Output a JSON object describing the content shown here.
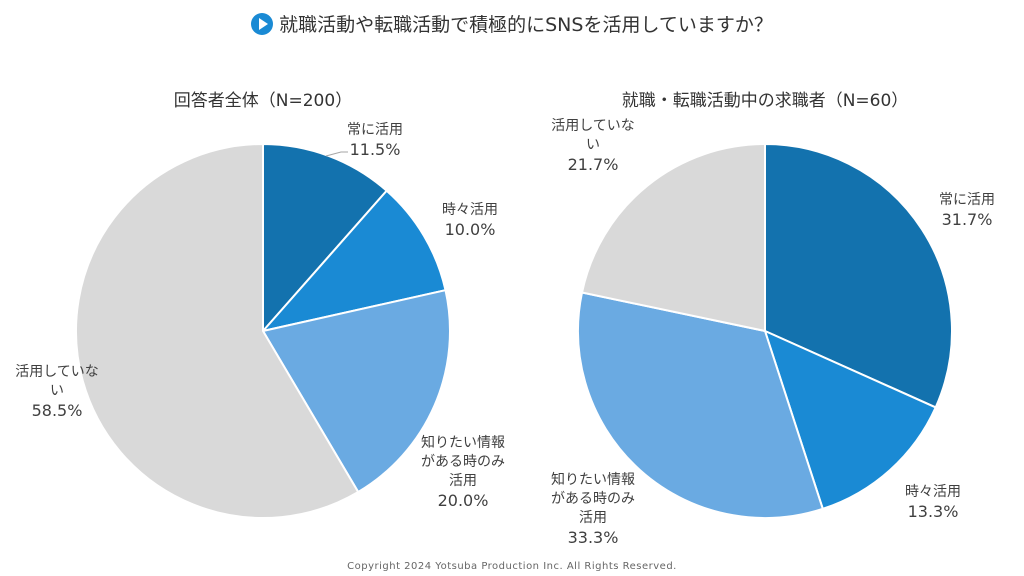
{
  "title": "就職活動や転職活動で積極的にSNSを活用していますか？",
  "footer": "Copyright 2024  Yotsuba  Production  Inc.   All  Rights  Reserved.",
  "colors": {
    "always": "#1372ae",
    "sometimes": "#1a8ad4",
    "only_when": "#6aaae2",
    "not_using": "#d9d9d9"
  },
  "chart_data": [
    {
      "type": "pie",
      "title": "回答者全体（N=200）",
      "slices": [
        {
          "label": "常に活用",
          "value": 11.5,
          "display": "11.5%"
        },
        {
          "label": "時々活用",
          "value": 10.0,
          "display": "10.0%"
        },
        {
          "label": "知りたい情報がある時のみ活用",
          "value": 20.0,
          "display": "20.0%"
        },
        {
          "label": "活用していない",
          "value": 58.5,
          "display": "58.5%"
        }
      ]
    },
    {
      "type": "pie",
      "title": "就職・転職活動中の求職者（N=60）",
      "slices": [
        {
          "label": "常に活用",
          "value": 31.7,
          "display": "31.7%"
        },
        {
          "label": "時々活用",
          "value": 13.3,
          "display": "13.3%"
        },
        {
          "label": "知りたい情報がある時のみ活用",
          "value": 33.3,
          "display": "33.3%"
        },
        {
          "label": "活用していない",
          "value": 21.7,
          "display": "21.7%"
        }
      ]
    }
  ]
}
